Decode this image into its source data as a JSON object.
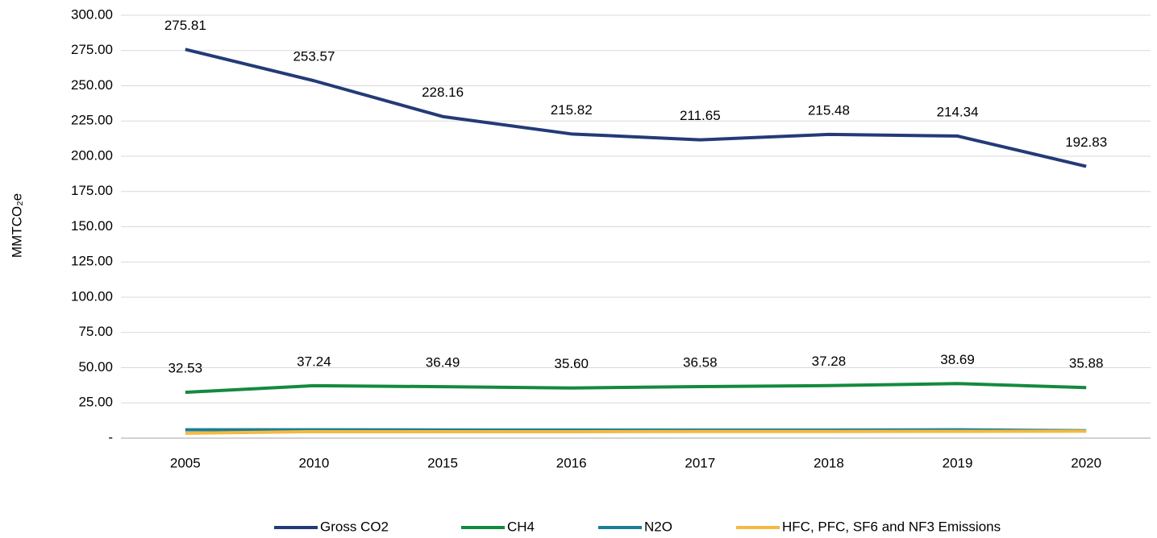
{
  "chart_data": {
    "type": "line",
    "ylabel": "MMTCO₂e",
    "categories": [
      "2005",
      "2010",
      "2015",
      "2016",
      "2017",
      "2018",
      "2019",
      "2020"
    ],
    "series": [
      {
        "name": "Gross CO2",
        "color": "#243a78",
        "values": [
          275.81,
          253.57,
          228.16,
          215.82,
          211.65,
          215.48,
          214.34,
          192.83
        ],
        "value_labels": [
          "275.81",
          "253.57",
          "228.16",
          "215.82",
          "211.65",
          "215.48",
          "214.34",
          "192.83"
        ]
      },
      {
        "name": "CH4",
        "color": "#138a3e",
        "values": [
          32.53,
          37.24,
          36.49,
          35.6,
          36.58,
          37.28,
          38.69,
          35.88
        ],
        "value_labels": [
          "32.53",
          "37.24",
          "36.49",
          "35.60",
          "36.58",
          "37.28",
          "38.69",
          "35.88"
        ]
      },
      {
        "name": "N2O",
        "color": "#1b7f94",
        "values": [
          5.9,
          5.9,
          5.8,
          5.7,
          5.7,
          5.7,
          5.9,
          5.3
        ]
      },
      {
        "name": "HFC, PFC, SF6 and NF3 Emissions",
        "color": "#f5b942",
        "values": [
          3.5,
          4.6,
          4.6,
          4.6,
          4.7,
          4.7,
          4.8,
          4.9
        ]
      }
    ],
    "ylim": [
      0,
      300
    ],
    "yticks": [
      {
        "value": 0,
        "label": "-"
      },
      {
        "value": 25,
        "label": "25.00"
      },
      {
        "value": 50,
        "label": "50.00"
      },
      {
        "value": 75,
        "label": "75.00"
      },
      {
        "value": 100,
        "label": "100.00"
      },
      {
        "value": 125,
        "label": "125.00"
      },
      {
        "value": 150,
        "label": "150.00"
      },
      {
        "value": 175,
        "label": "175.00"
      },
      {
        "value": 200,
        "label": "200.00"
      },
      {
        "value": 225,
        "label": "225.00"
      },
      {
        "value": 250,
        "label": "250.00"
      },
      {
        "value": 275,
        "label": "275.00"
      },
      {
        "value": 300,
        "label": "300.00"
      }
    ],
    "grid": true,
    "legend": "bottom"
  }
}
